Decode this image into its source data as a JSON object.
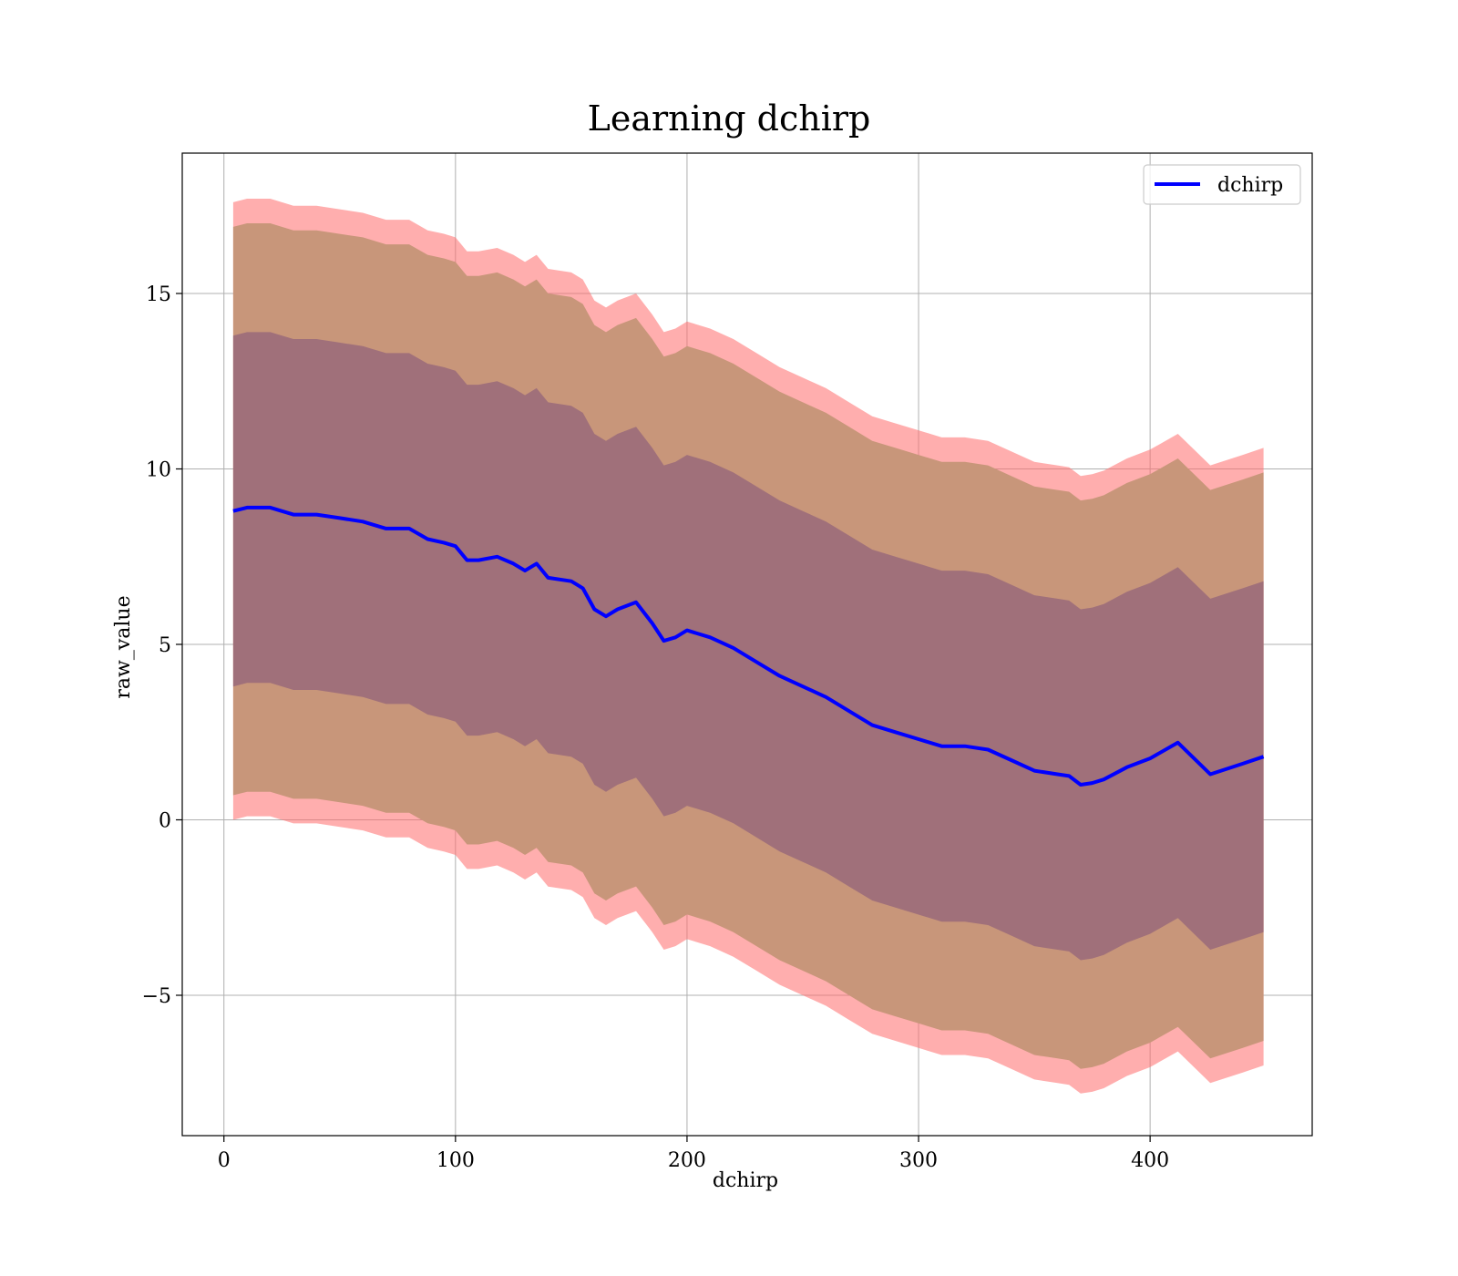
{
  "chart_data": {
    "type": "area",
    "title": "Learning dchirp",
    "xlabel": "dchirp",
    "ylabel": "raw_value",
    "xlim": [
      -18,
      470
    ],
    "ylim": [
      -9,
      19
    ],
    "xticks": [
      0,
      100,
      200,
      300,
      400
    ],
    "yticks": [
      -5,
      0,
      5,
      10,
      15
    ],
    "ytick_labels": [
      "−5",
      "0",
      "5",
      "10",
      "15"
    ],
    "grid": true,
    "legend": {
      "position": "top-right",
      "entries": [
        "dchirp"
      ]
    },
    "colors": {
      "line": "#0000ff",
      "outer_band": "#ff6b6b",
      "middle_band": "#c8967a",
      "inner_band": "#a0707a",
      "grid": "#b0b0b0"
    },
    "series": [
      {
        "name": "dchirp",
        "x": [
          4,
          10,
          20,
          30,
          40,
          50,
          60,
          70,
          80,
          88,
          95,
          100,
          105,
          110,
          118,
          125,
          130,
          135,
          140,
          150,
          155,
          160,
          165,
          170,
          178,
          185,
          190,
          195,
          200,
          210,
          220,
          230,
          240,
          250,
          260,
          270,
          280,
          290,
          300,
          310,
          320,
          330,
          340,
          350,
          360,
          365,
          370,
          375,
          380,
          390,
          400,
          412,
          426,
          440,
          449
        ],
        "values": [
          8.8,
          8.9,
          8.9,
          8.7,
          8.7,
          8.6,
          8.5,
          8.3,
          8.3,
          8.0,
          7.9,
          7.8,
          7.4,
          7.4,
          7.5,
          7.3,
          7.1,
          7.3,
          6.9,
          6.8,
          6.6,
          6.0,
          5.8,
          6.0,
          6.2,
          5.6,
          5.1,
          5.2,
          5.4,
          5.2,
          4.9,
          4.5,
          4.1,
          3.8,
          3.5,
          3.1,
          2.7,
          2.5,
          2.3,
          2.1,
          2.1,
          2.0,
          1.7,
          1.4,
          1.3,
          1.25,
          1.0,
          1.05,
          1.15,
          1.5,
          1.75,
          2.2,
          1.3,
          1.6,
          1.8
        ]
      }
    ],
    "bands": [
      {
        "name": "outer",
        "lower_offset": -8.8,
        "upper_offset": 8.8
      },
      {
        "name": "middle",
        "lower_offset": -8.1,
        "upper_offset": 8.1
      },
      {
        "name": "inner",
        "lower_offset": -5.0,
        "upper_offset": 5.0
      }
    ]
  }
}
